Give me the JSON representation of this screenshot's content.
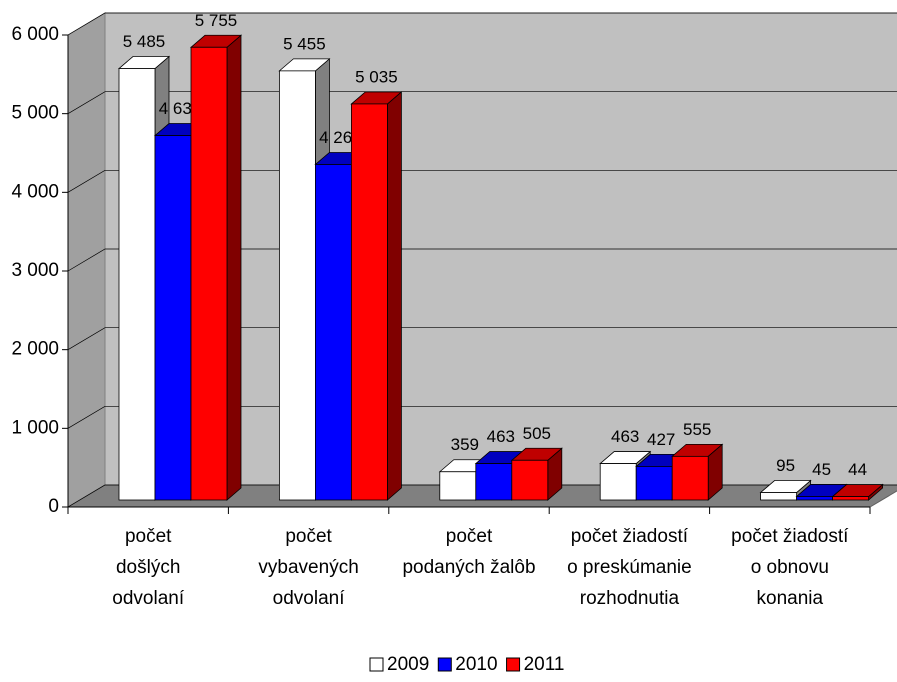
{
  "chart_data": {
    "type": "bar3d",
    "categories": [
      "počet\ndošlých\nodvolaní",
      "počet\nvybavených\nodvolaní",
      "počet\npodaných žalôb",
      "počet žiadostí\no preskúmanie\nrozhodnutia",
      "počet žiadostí\no obnovu\nkonania"
    ],
    "series": [
      {
        "name": "2009",
        "color": "#ffffff",
        "values": [
          5485,
          5455,
          359,
          463,
          95
        ],
        "value_labels": [
          "5 485",
          "5 455",
          "359",
          "463",
          "95"
        ]
      },
      {
        "name": "2010",
        "color": "#0000ff",
        "values": [
          4633,
          4265,
          463,
          427,
          45
        ],
        "value_labels": [
          "4 633",
          "4 265",
          "463",
          "427",
          "45"
        ]
      },
      {
        "name": "2011",
        "color": "#ff0000",
        "values": [
          5755,
          5035,
          505,
          555,
          44
        ],
        "value_labels": [
          "5 755",
          "5 035",
          "505",
          "555",
          "44"
        ]
      }
    ],
    "ylim": [
      0,
      6000
    ],
    "yticks": [
      0,
      {
        "value": 1000,
        "label": "1 000"
      },
      {
        "value": 2000,
        "label": "2 000"
      },
      {
        "value": 3000,
        "label": "3 000"
      },
      {
        "value": 4000,
        "label": "4 000"
      },
      {
        "value": 5000,
        "label": "5 000"
      },
      {
        "value": 6000,
        "label": "6 000"
      }
    ],
    "grid": true,
    "legend": "bottom"
  }
}
